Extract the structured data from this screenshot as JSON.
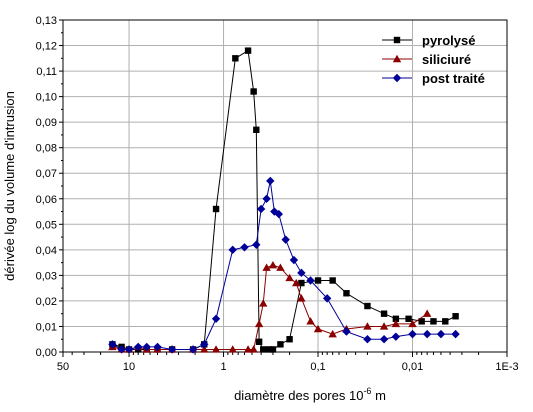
{
  "chart_data": {
    "type": "line",
    "xlabel": "diamètre des pores 10",
    "xlabel_sup": "-6",
    "xlabel_unit": " m",
    "ylabel": "dérivée log du volume d'intrusion",
    "x_scale": "log",
    "x_reversed": true,
    "xlim": [
      50,
      0.001
    ],
    "ylim": [
      0,
      0.13
    ],
    "grid": true,
    "legend_position": "top-right",
    "x_ticks": [
      {
        "value": 50,
        "label": "50"
      },
      {
        "value": 10,
        "label": "10"
      },
      {
        "value": 1,
        "label": "1"
      },
      {
        "value": 0.1,
        "label": "0,1"
      },
      {
        "value": 0.01,
        "label": "0,01"
      },
      {
        "value": 0.001,
        "label": "1E-3"
      }
    ],
    "y_ticks": [
      {
        "value": 0,
        "label": "0,00"
      },
      {
        "value": 0.01,
        "label": "0,01"
      },
      {
        "value": 0.02,
        "label": "0,02"
      },
      {
        "value": 0.03,
        "label": "0,03"
      },
      {
        "value": 0.04,
        "label": "0,04"
      },
      {
        "value": 0.05,
        "label": "0,05"
      },
      {
        "value": 0.06,
        "label": "0,06"
      },
      {
        "value": 0.07,
        "label": "0,07"
      },
      {
        "value": 0.08,
        "label": "0,08"
      },
      {
        "value": 0.09,
        "label": "0,09"
      },
      {
        "value": 0.1,
        "label": "0,10"
      },
      {
        "value": 0.11,
        "label": "0,11"
      },
      {
        "value": 0.12,
        "label": "0,12"
      },
      {
        "value": 0.13,
        "label": "0,13"
      }
    ],
    "series": [
      {
        "name": "pyrolysé",
        "color": "#000000",
        "marker": "square",
        "x": [
          15,
          12,
          10,
          8,
          6.5,
          5,
          3.5,
          2.1,
          1.6,
          1.2,
          0.75,
          0.55,
          0.48,
          0.45,
          0.42,
          0.38,
          0.33,
          0.3,
          0.25,
          0.2,
          0.15,
          0.1,
          0.07,
          0.05,
          0.03,
          0.02,
          0.015,
          0.011,
          0.008,
          0.006,
          0.0045,
          0.0035
        ],
        "y": [
          0.003,
          0.002,
          0.001,
          0.001,
          0.001,
          0.001,
          0.001,
          0.001,
          0.003,
          0.056,
          0.115,
          0.118,
          0.102,
          0.087,
          0.004,
          0.001,
          0.001,
          0.001,
          0.003,
          0.005,
          0.027,
          0.028,
          0.028,
          0.023,
          0.018,
          0.015,
          0.013,
          0.013,
          0.012,
          0.012,
          0.012,
          0.014
        ]
      },
      {
        "name": "siliciuré",
        "color": "#8B0000",
        "marker": "triangle",
        "x": [
          15,
          12,
          10,
          8,
          6.5,
          5,
          3.5,
          2.1,
          1.6,
          1.2,
          0.8,
          0.55,
          0.48,
          0.42,
          0.38,
          0.35,
          0.3,
          0.25,
          0.2,
          0.17,
          0.15,
          0.12,
          0.1,
          0.07,
          0.05,
          0.03,
          0.02,
          0.015,
          0.01,
          0.007
        ],
        "y": [
          0.002,
          0.001,
          0.001,
          0.002,
          0.001,
          0.001,
          0.001,
          0.001,
          0.001,
          0.001,
          0.001,
          0.001,
          0.001,
          0.011,
          0.019,
          0.033,
          0.034,
          0.033,
          0.029,
          0.027,
          0.021,
          0.012,
          0.009,
          0.007,
          0.009,
          0.01,
          0.01,
          0.011,
          0.011,
          0.015
        ]
      },
      {
        "name": "post traité",
        "color": "#000099",
        "marker": "diamond",
        "x": [
          15,
          12,
          10,
          8,
          6.5,
          5,
          3.5,
          2.1,
          1.6,
          1.2,
          0.8,
          0.6,
          0.45,
          0.4,
          0.35,
          0.32,
          0.29,
          0.26,
          0.22,
          0.18,
          0.15,
          0.12,
          0.08,
          0.05,
          0.03,
          0.02,
          0.015,
          0.01,
          0.007,
          0.005,
          0.0035
        ],
        "y": [
          0.003,
          0.001,
          0.001,
          0.002,
          0.002,
          0.002,
          0.001,
          0.001,
          0.003,
          0.013,
          0.04,
          0.041,
          0.042,
          0.056,
          0.06,
          0.067,
          0.055,
          0.054,
          0.044,
          0.036,
          0.031,
          0.028,
          0.021,
          0.008,
          0.005,
          0.005,
          0.006,
          0.007,
          0.007,
          0.007,
          0.007
        ]
      }
    ]
  }
}
